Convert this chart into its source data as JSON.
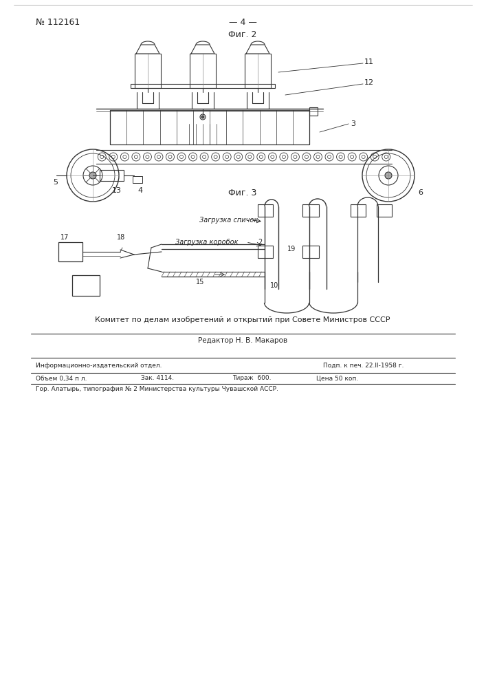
{
  "bg_color": "#ffffff",
  "text_color": "#222222",
  "patent_number": "№ 112161",
  "page_number": "— 4 —",
  "fig2_label": "Фиг. 2",
  "fig3_label": "Фиг. 3",
  "committee_text": "Комитет по делам изобретений и открытий при Совете Министров СССР",
  "editor_text": "Редактор Н. В. Макаров",
  "info_line1_left": "Информационно-издательский отдел.",
  "info_line1_right": "Подп. к печ. 22.II-1958 г.",
  "info_line2_left": "Объем 0,34 п л.",
  "info_line2_mid": "Зак. 4114.",
  "info_line2_right1": "Тираж  600.",
  "info_line2_right2": "Цена 50 коп.",
  "footer_text": "Гор. Алатырь, типография № 2 Министерства культуры Чувашской АССР.",
  "label_zagr_spichek": "Загрузка спичек",
  "label_zagr_korobok": "Загрузка коробок"
}
